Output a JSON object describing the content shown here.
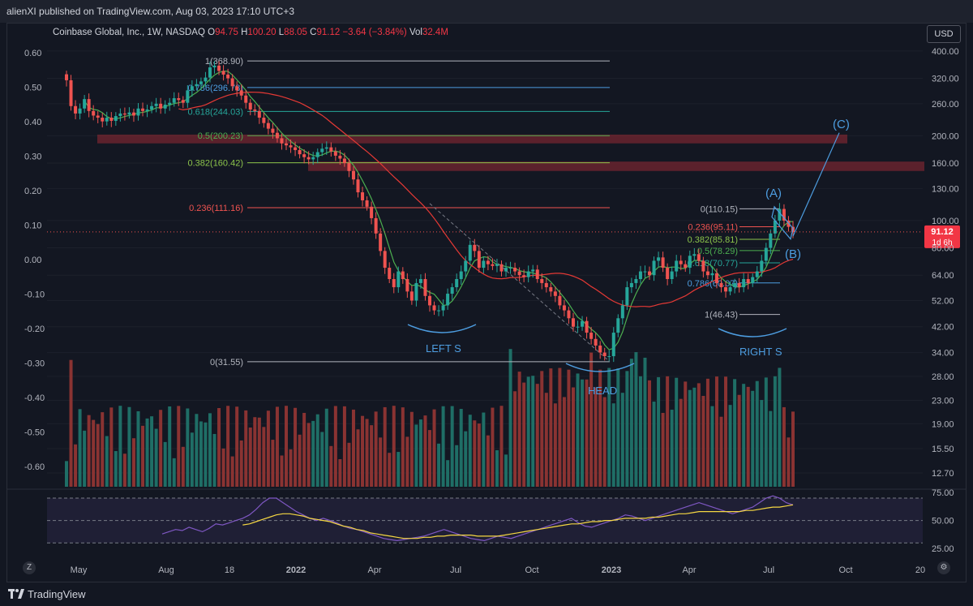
{
  "header": {
    "published": "alienXI published on TradingView.com, Aug 03, 2023 17:10 UTC+3"
  },
  "legend": {
    "symbol": "Coinbase Global, Inc., 1W, NASDAQ",
    "open_key": "O",
    "open": "94.75",
    "high_key": "H",
    "high": "100.20",
    "low_key": "L",
    "low": "88.05",
    "close_key": "C",
    "close": "91.12",
    "change": "−3.64 (−3.84%)",
    "vol_key": "Vol",
    "vol": "32.4M"
  },
  "currency_button": "USD",
  "price_label": {
    "value": "91.12",
    "countdown": "1d 6h"
  },
  "footer": {
    "brand": "TradingView",
    "settings_icon": "gear-icon",
    "zoom_icon": "z-icon"
  },
  "colors": {
    "up": "#26a69a",
    "down": "#ef5350",
    "up_vol": "#1f6e66",
    "down_vol": "#8a3332",
    "ma_short": "#4caf50",
    "ma_long": "#e53935",
    "rsi": "#7e57c2",
    "rsi_ma": "#f5d742",
    "annot": "#4d9de0"
  },
  "chart_data": [
    {
      "type": "candlestick",
      "symbol": "Coinbase Global, Inc.",
      "interval": "1W",
      "exchange": "NASDAQ",
      "scale": "log",
      "ylim": [
        11.5,
        430
      ],
      "right_axis_ticks": [
        "400.00",
        "320.00",
        "260.00",
        "200.00",
        "160.00",
        "130.00",
        "100.00",
        "80.00",
        "64.00",
        "52.00",
        "42.00",
        "34.00",
        "28.00",
        "23.00",
        "19.00",
        "15.50",
        "12.70"
      ],
      "left_axis_ticks": [
        "0.60",
        "0.50",
        "0.40",
        "0.30",
        "0.20",
        "0.10",
        "0.00",
        "-0.10",
        "-0.20",
        "-0.30",
        "-0.40",
        "-0.50",
        "-0.60"
      ],
      "x_tick_labels": [
        "May",
        "Aug",
        "18",
        "2022",
        "Apr",
        "Jul",
        "Oct",
        "2023",
        "Apr",
        "Jul",
        "Oct",
        "20"
      ],
      "candles_close": [
        315,
        255,
        240,
        250,
        270,
        245,
        236,
        232,
        225,
        232,
        226,
        235,
        240,
        238,
        242,
        236,
        250,
        245,
        248,
        255,
        260,
        250,
        258,
        262,
        272,
        268,
        262,
        290,
        300,
        305,
        312,
        322,
        350,
        355,
        340,
        330,
        320,
        300,
        290,
        278,
        262,
        248,
        245,
        232,
        222,
        212,
        205,
        196,
        188,
        185,
        182,
        178,
        172,
        168,
        165,
        168,
        175,
        180,
        182,
        176,
        170,
        166,
        160,
        150,
        140,
        126,
        118,
        112,
        102,
        90,
        78,
        68,
        62,
        58,
        66,
        62,
        56,
        52,
        60,
        62,
        54,
        50,
        48,
        48,
        50,
        55,
        58,
        62,
        66,
        72,
        82,
        78,
        68,
        72,
        70,
        69,
        70,
        66,
        68,
        68,
        66,
        64,
        63,
        66,
        67,
        62,
        60,
        58,
        56,
        54,
        50,
        48,
        45,
        42,
        42,
        44,
        40,
        38,
        36,
        34,
        33,
        33,
        40,
        45,
        50,
        58,
        60,
        62,
        66,
        66,
        64,
        72,
        74,
        68,
        62,
        66,
        72,
        70,
        68,
        75,
        76,
        72,
        66,
        64,
        65,
        60,
        58,
        56,
        58,
        60,
        58,
        62,
        60,
        63,
        66,
        72,
        80,
        90,
        100,
        110,
        100,
        95,
        91.12
      ],
      "fib_retracements": [
        {
          "labels": [
            "1(368.90)",
            "0.786(296.78)",
            "0.618(244.03)",
            "0.5(200.23)",
            "0.382(160.42)",
            "0.236(111.16)",
            "0(31.55)"
          ]
        },
        {
          "labels": [
            "0(110.15)",
            "0.236(95.11)",
            "0.382(85.81)",
            "0.5(78.29)",
            "0.618(70.77)",
            "0.786(60.07)",
            "1(46.43)"
          ]
        }
      ],
      "pattern_labels": [
        "LEFT S",
        "HEAD",
        "RIGHT S"
      ],
      "wave_labels": [
        "(A)",
        "(B)",
        "(C)"
      ],
      "volume_scale": "log"
    },
    {
      "type": "line",
      "name": "RSI",
      "ylim": [
        20,
        78
      ],
      "axis_ticks": [
        "75.00",
        "50.00",
        "25.00"
      ],
      "levels": [
        70,
        50,
        30
      ],
      "rsi": [
        38,
        40,
        42,
        41,
        44,
        42,
        40,
        43,
        47,
        46,
        48,
        50,
        52,
        55,
        60,
        66,
        70,
        70,
        66,
        62,
        58,
        55,
        52,
        50,
        52,
        50,
        48,
        45,
        43,
        42,
        40,
        38,
        36,
        34,
        33,
        32,
        33,
        34,
        35,
        36,
        38,
        40,
        42,
        40,
        38,
        36,
        34,
        33,
        32,
        34,
        36,
        35,
        34,
        36,
        38,
        40,
        42,
        44,
        46,
        48,
        50,
        52,
        48,
        45,
        44,
        46,
        48,
        50,
        52,
        55,
        54,
        52,
        50,
        52,
        54,
        56,
        58,
        60,
        62,
        64,
        66,
        64,
        62,
        60,
        58,
        56,
        58,
        60,
        62,
        66,
        70,
        72,
        70,
        66,
        64
      ],
      "rsi_ma": [
        null,
        null,
        null,
        null,
        null,
        null,
        null,
        null,
        null,
        null,
        null,
        null,
        46,
        47,
        49,
        51,
        53,
        55,
        56,
        56,
        55,
        54,
        52,
        51,
        50,
        49,
        47,
        45,
        44,
        42,
        41,
        39,
        38,
        37,
        36,
        35,
        34,
        34,
        34,
        35,
        35,
        36,
        36,
        37,
        37,
        37,
        37,
        36,
        36,
        36,
        36,
        37,
        38,
        39,
        40,
        41,
        42,
        43,
        44,
        45,
        46,
        47,
        47,
        48,
        49,
        49,
        50,
        50,
        51,
        52,
        52,
        52,
        52,
        53,
        53,
        54,
        55,
        56,
        56,
        57,
        58,
        58,
        58,
        58,
        58,
        58,
        58,
        59,
        59,
        60,
        61,
        62,
        62,
        63,
        64
      ]
    }
  ]
}
